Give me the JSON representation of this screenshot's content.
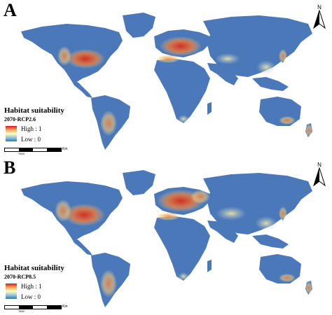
{
  "colors": {
    "ocean": "#ffffff",
    "low": "#4a78b9",
    "mid": "#f6e7a3",
    "high": "#d62a1f"
  },
  "panels": [
    {
      "letter": "A",
      "north_label": "N",
      "legend": {
        "title": "Habitat suitability",
        "scenario": "2070-RCP2.6",
        "high_label": "High : 1",
        "low_label": "Low : 0"
      },
      "scale": {
        "number": "7600",
        "unit": "Km"
      }
    },
    {
      "letter": "B",
      "north_label": "N",
      "legend": {
        "title": "Habitat suitability",
        "scenario": "2070-RCP8.5",
        "high_label": "High : 1",
        "low_label": "Low : 0"
      },
      "scale": {
        "number": "7600",
        "unit": "Km"
      }
    }
  ]
}
